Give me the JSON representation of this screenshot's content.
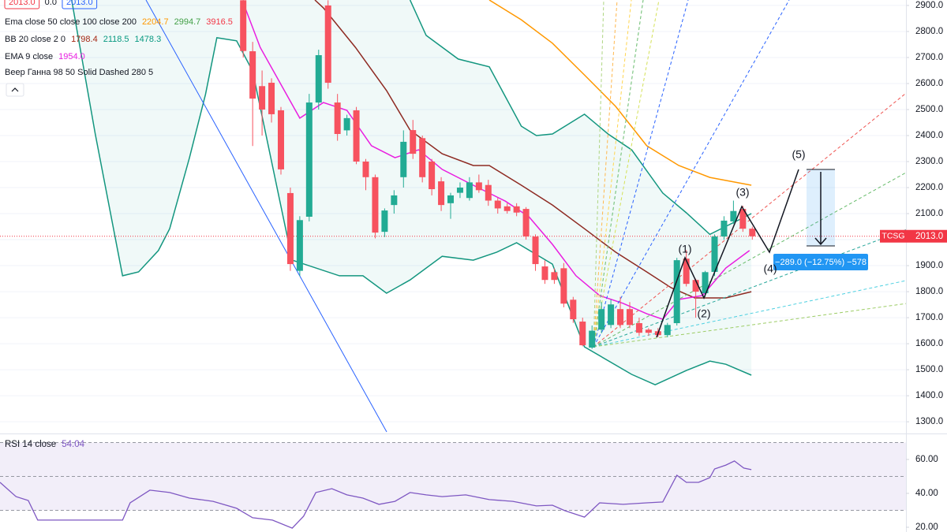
{
  "chart_data": {
    "type": "candlestick",
    "symbol": "TCSG",
    "header": [
      {
        "value": 2013,
        "label": "2013.0"
      },
      {
        "value": 0,
        "label": "0.0"
      },
      {
        "value": 2013,
        "label": "2013.0"
      }
    ],
    "open": [
      2920,
      2724,
      2590,
      2603,
      2497,
      2179,
      1880,
      2088,
      2527,
      2900,
      2527,
      2420,
      2497,
      2300,
      2240,
      2030,
      2133,
      2240,
      2421,
      2390,
      2300,
      2224,
      2140,
      2180,
      2160,
      2220,
      2210,
      2150,
      2128,
      2128,
      2118,
      2012,
      1897,
      1875,
      1890,
      1769,
      1685,
      1585,
      1654,
      1672,
      1733,
      1733,
      1679,
      1654,
      1648,
      1633,
      1679,
      1927,
      1845,
      1794,
      1876,
      2012,
      2070,
      2118,
      2042
    ],
    "high": [
      2950,
      2760,
      2650,
      2620,
      2510,
      2200,
      2090,
      2560,
      2730,
      2920,
      2560,
      2480,
      2510,
      2310,
      2250,
      2120,
      2190,
      2420,
      2460,
      2400,
      2310,
      2240,
      2180,
      2220,
      2240,
      2250,
      2230,
      2160,
      2140,
      2140,
      2125,
      2020,
      1920,
      1890,
      1910,
      1780,
      1700,
      1670,
      1760,
      1770,
      1780,
      1760,
      1700,
      1660,
      1660,
      1680,
      1930,
      1960,
      1850,
      1880,
      2020,
      2090,
      2150,
      2130,
      2050
    ],
    "low": [
      2700,
      2360,
      2400,
      2450,
      2250,
      1880,
      1860,
      2070,
      2500,
      2580,
      2380,
      2400,
      2290,
      2190,
      2005,
      2010,
      2100,
      2200,
      2310,
      2220,
      2170,
      2110,
      2080,
      2160,
      2150,
      2180,
      2130,
      2100,
      2100,
      2090,
      2000,
      1880,
      1830,
      1830,
      1740,
      1680,
      1590,
      1580,
      1640,
      1660,
      1660,
      1660,
      1630,
      1630,
      1625,
      1625,
      1670,
      1820,
      1700,
      1780,
      1860,
      2000,
      2060,
      2030,
      2000
    ],
    "close": [
      2725,
      2542,
      2500,
      2482,
      2270,
      1906,
      2075,
      2527,
      2709,
      2603,
      2406,
      2467,
      2300,
      2240,
      2027,
      2112,
      2170,
      2376,
      2330,
      2240,
      2194,
      2133,
      2170,
      2200,
      2220,
      2190,
      2150,
      2120,
      2110,
      2104,
      2012,
      1906,
      1845,
      1845,
      1754,
      1694,
      1594,
      1650,
      1733,
      1751,
      1672,
      1672,
      1642,
      1642,
      1633,
      1672,
      1921,
      1830,
      1800,
      1875,
      2012,
      2073,
      2110,
      2042,
      2013
    ],
    "up_color": "#22ab94",
    "down_color": "#f7525f",
    "xlim": [
      -25.8,
      70.3
    ],
    "ylim": [
      1261,
      2921
    ],
    "yticks": [
      {
        "value": 2900,
        "label": "2900.0"
      },
      {
        "value": 2800,
        "label": "2800.0"
      },
      {
        "value": 2700,
        "label": "2700.0"
      },
      {
        "value": 2600,
        "label": "2600.0"
      },
      {
        "value": 2500,
        "label": "2500.0"
      },
      {
        "value": 2400,
        "label": "2400.0"
      },
      {
        "value": 2300,
        "label": "2300.0"
      },
      {
        "value": 2200,
        "label": "2200.0"
      },
      {
        "value": 2100,
        "label": "2100.0"
      },
      {
        "value": 2000,
        "label": "2000.0"
      },
      {
        "value": 1900,
        "label": "1900.0"
      },
      {
        "value": 1800,
        "label": "1800.0"
      },
      {
        "value": 1700,
        "label": "1700.0"
      },
      {
        "value": 1600,
        "label": "1600.0"
      },
      {
        "value": 1500,
        "label": "1500.0"
      },
      {
        "value": 1400,
        "label": "1400.0"
      },
      {
        "value": 1300,
        "label": "1300.0"
      }
    ],
    "grid": true,
    "last_price": {
      "value": 2013,
      "label": "2013.0"
    },
    "last_price_color": "#f23645",
    "overlays": [
      {
        "legend": "Ema close 50 close 100 close 200",
        "values": [
          2204.7,
          2994.7,
          3916.5
        ],
        "colors": [
          "#ff9800",
          "#43a047",
          "#f23645"
        ],
        "lines": [
          {
            "color": "#ff9800",
            "x": [
              26.1,
              29.5,
              32.8,
              36.2,
              39.5,
              42.8,
              46.2,
              49.5,
              53.9
            ],
            "values": [
              2921,
              2845,
              2755,
              2633,
              2512,
              2361,
              2285,
              2239,
              2209
            ]
          }
        ]
      },
      {
        "legend": "BB 20 close 2 0",
        "values": [
          1798.4,
          2118.5,
          1478.3
        ],
        "colors": [
          "#a52714",
          "#089981",
          "#089981"
        ],
        "fill": "rgba(8,153,129,0.06)",
        "lines": [
          {
            "color": "#8e2a22",
            "x": [
              7.6,
              8.5,
              11.9,
              15.2,
              17.7,
              21.1,
              24.4,
              26.1,
              29.5,
              32.8,
              36.2,
              39.5,
              42.8,
              45.4,
              47.9,
              51.2,
              53.9
            ],
            "values": [
              2921,
              2891,
              2739,
              2573,
              2421,
              2330,
              2285,
              2285,
              2209,
              2133,
              2042,
              1952,
              1876,
              1815,
              1776,
              1776,
              1800
            ]
          },
          {
            "color": "#13967f",
            "x": [
              17.7,
              19.4,
              22.8,
              26.1,
              29.5,
              31.1,
              32.8,
              36.2,
              38.7,
              41.2,
              44.5,
              47.0,
              49.5,
              53.9
            ],
            "values": [
              2921,
              2785,
              2694,
              2664,
              2436,
              2400,
              2406,
              2482,
              2406,
              2345,
              2179,
              2103,
              2020,
              2100
            ]
          },
          {
            "color": "#13967f",
            "x": [
              -18.2,
              -15.7,
              -12.8,
              -11.1,
              -9.0,
              -7.8,
              -5.7,
              -4.0,
              -2.8,
              -0.7,
              1.0,
              5.2,
              10.2,
              12.7,
              15.2,
              17.7,
              21.1,
              24.4,
              26.9,
              29.0,
              32.8,
              36.2,
              41.2,
              43.7,
              47.0,
              49.5,
              51.2,
              53.9
            ],
            "values": [
              2921,
              2406,
              1861,
              1876,
              1958,
              2042,
              2315,
              2558,
              2776,
              2764,
              2648,
              1921,
              1861,
              1861,
              1794,
              1845,
              1936,
              1921,
              1952,
              1988,
              1906,
              1588,
              1482,
              1442,
              1497,
              1533,
              1521,
              1479
            ]
          }
        ]
      },
      {
        "legend": "EMA 9 close",
        "values": [
          1954
        ],
        "value_labels": [
          "1954.0"
        ],
        "colors": [
          "#e91ee0"
        ],
        "lines": [
          {
            "color": "#e91ee0",
            "x": [
              0.2,
              1.8,
              6.0,
              8.5,
              11.0,
              13.6,
              16.1,
              18.6,
              21.1,
              24.4,
              27.8,
              30.3,
              32.8,
              35.3,
              37.8,
              40.3,
              42.8,
              44.5,
              46.2,
              48.7,
              51.2,
              53.7
            ],
            "values": [
              2891,
              2739,
              2467,
              2527,
              2497,
              2361,
              2315,
              2345,
              2270,
              2209,
              2148,
              2088,
              1982,
              1861,
              1785,
              1755,
              1715,
              1694,
              1770,
              1785,
              1891,
              1958
            ]
          }
        ]
      }
    ],
    "fan_legend": "Веер Ганна 98 50 Solid Dashed 280 5",
    "waves": [
      "(1)",
      "(2)",
      "(3)",
      "(4)",
      "(5)"
    ],
    "measure": "−289.0 (−12.75%) −578",
    "rsi": {
      "legend": "RSI 14 close",
      "value": 54.04,
      "color": "#7e57c2",
      "x": [
        -25.8,
        -24.1,
        -22.8,
        -21.8,
        -19.1,
        -12.8,
        -12.0,
        -9.9,
        -7.8,
        -5.7,
        -3.2,
        -0.7,
        1.0,
        3.1,
        5.2,
        6.4,
        7.7,
        9.4,
        11.0,
        12.7,
        14.4,
        16.1,
        17.7,
        19.4,
        21.1,
        23.6,
        26.1,
        28.6,
        31.1,
        32.8,
        34.1,
        36.2,
        37.8,
        40.3,
        42.8,
        44.5,
        46.0,
        47.0,
        48.3,
        49.5,
        50.0,
        51.2,
        52.1,
        53.1,
        53.9
      ],
      "values": [
        46.5,
        38.1,
        35.8,
        24.2,
        24.2,
        24.2,
        34.4,
        41.9,
        40.5,
        37.2,
        35.3,
        31.2,
        25.6,
        24.2,
        19.5,
        26.5,
        40.5,
        42.8,
        39.1,
        37.2,
        33.5,
        35.3,
        40.5,
        39.1,
        38.1,
        39.1,
        36.3,
        35.3,
        32.6,
        33.0,
        29.8,
        26.0,
        34.4,
        33.5,
        34.4,
        34.9,
        50.7,
        46.5,
        46.5,
        49.3,
        54.4,
        56.7,
        59.1,
        54.9,
        54.0
      ],
      "ylim": [
        17.2,
        74.4
      ],
      "yticks": [
        {
          "value": 60,
          "label": "60.00"
        },
        {
          "value": 40,
          "label": "40.00"
        },
        {
          "value": 20,
          "label": "20.00"
        }
      ],
      "band": [
        30,
        70
      ],
      "midline": 50
    }
  }
}
